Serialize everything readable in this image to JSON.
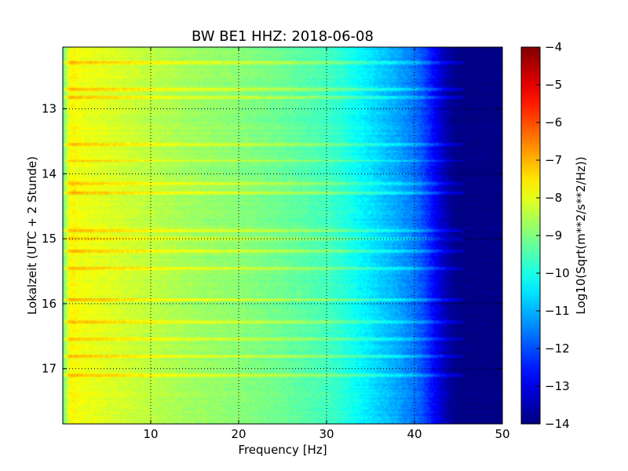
{
  "chart_data": {
    "type": "heatmap",
    "title": "BW BE1 HHZ: 2018-06-08",
    "xlabel": "Frequency [Hz]",
    "ylabel": "Lokalzeit (UTC + 2 Stunde)",
    "xlim": [
      0,
      50
    ],
    "ylim": [
      12.05,
      17.85
    ],
    "y_inverted": true,
    "x_ticks": [
      10,
      20,
      30,
      40,
      50
    ],
    "y_ticks": [
      13,
      14,
      15,
      16,
      17
    ],
    "grid": true,
    "colormap": "jet",
    "colorbar": {
      "label": "Log10(Sqrt(m**2/s**2/Hz))",
      "range": [
        -14,
        -4
      ],
      "ticks": [
        -4,
        -5,
        -6,
        -7,
        -8,
        -9,
        -10,
        -11,
        -12,
        -13,
        -14
      ]
    },
    "frequency_profile": {
      "frequency_hz": [
        0,
        0.5,
        1,
        2,
        4,
        7,
        10,
        15,
        20,
        25,
        30,
        32,
        34,
        36,
        38,
        40,
        41,
        42,
        43,
        44,
        45,
        46,
        50
      ],
      "log_amplitude": [
        -9.5,
        -8.2,
        -7.7,
        -7.9,
        -8.0,
        -8.2,
        -8.4,
        -8.7,
        -8.9,
        -9.2,
        -9.6,
        -9.9,
        -10.3,
        -10.7,
        -11.1,
        -11.6,
        -12.0,
        -12.6,
        -13.2,
        -13.7,
        -14.0,
        -14.0,
        -14.0
      ]
    },
    "elevated_time_bands_hour": [
      12.3,
      12.7,
      12.83,
      13.55,
      13.8,
      14.15,
      14.3,
      14.88,
      15.0,
      15.2,
      15.45,
      15.95,
      16.28,
      16.55,
      16.82,
      17.1
    ],
    "band_boost_log_amplitude": 0.7,
    "band_cutoff_hz": 45.5
  }
}
